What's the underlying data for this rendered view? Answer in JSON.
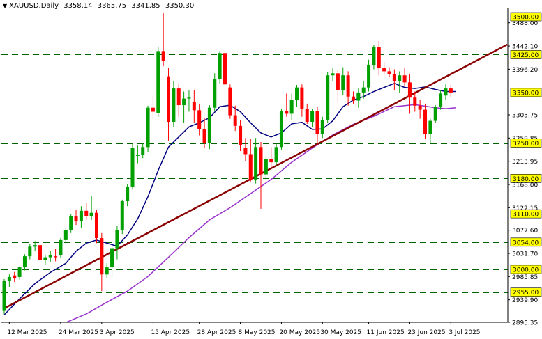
{
  "header": {
    "symbol": "XAUUSD,Daily",
    "open": "3358.14",
    "high": "3365.75",
    "low": "3341.85",
    "close": "3350.30"
  },
  "chart_data": {
    "type": "candlestick",
    "title": "XAUUSD,Daily",
    "ylim": [
      2895.35,
      3514.0
    ],
    "y_tick_labels": [
      "3488.00",
      "3442.10",
      "3396.20",
      "3305.75",
      "3259.85",
      "3213.95",
      "3168.00",
      "3122.15",
      "3077.60",
      "3031.70",
      "2985.85",
      "2939.90",
      "2895.35"
    ],
    "horizontal_levels": [
      {
        "value": 3500.0,
        "label": "3500.00"
      },
      {
        "value": 3425.0,
        "label": "3425.00"
      },
      {
        "value": 3350.0,
        "label": "3350.00"
      },
      {
        "value": 3250.0,
        "label": "3250.00"
      },
      {
        "value": 3180.0,
        "label": "3180.00"
      },
      {
        "value": 3110.0,
        "label": "3110.00"
      },
      {
        "value": 3054.0,
        "label": "3054.00"
      },
      {
        "value": 3000.0,
        "label": "3000.00"
      },
      {
        "value": 2955.0,
        "label": "2955.00"
      }
    ],
    "x_labels": [
      {
        "label": "12 Mar 2025",
        "bar": 1
      },
      {
        "label": "24 Mar 2025",
        "bar": 11
      },
      {
        "label": "3 Apr 2025",
        "bar": 19
      },
      {
        "label": "15 Apr 2025",
        "bar": 29
      },
      {
        "label": "28 Apr 2025",
        "bar": 38
      },
      {
        "label": "8 May 2025",
        "bar": 46
      },
      {
        "label": "20 May 2025",
        "bar": 54
      },
      {
        "label": "30 May 2025",
        "bar": 62
      },
      {
        "label": "11 Jun 2025",
        "bar": 71
      },
      {
        "label": "23 Jun 2025",
        "bar": 79
      },
      {
        "label": "3 Jul 2025",
        "bar": 87
      }
    ],
    "candles": [
      [
        2918,
        2981,
        2912,
        2978
      ],
      [
        2978,
        2990,
        2965,
        2985
      ],
      [
        2988,
        2995,
        2975,
        2982
      ],
      [
        2985,
        3006,
        2980,
        3004
      ],
      [
        3004,
        3030,
        2998,
        3026
      ],
      [
        3026,
        3050,
        3020,
        3045
      ],
      [
        3045,
        3056,
        3036,
        3048
      ],
      [
        3048,
        3052,
        3012,
        3018
      ],
      [
        3018,
        3028,
        3008,
        3024
      ],
      [
        3024,
        3036,
        3015,
        3029
      ],
      [
        3026,
        3040,
        3016,
        3024
      ],
      [
        3028,
        3062,
        3022,
        3058
      ],
      [
        3058,
        3082,
        3052,
        3078
      ],
      [
        3078,
        3110,
        3072,
        3105
      ],
      [
        3105,
        3118,
        3088,
        3095
      ],
      [
        3095,
        3125,
        3082,
        3116
      ],
      [
        3116,
        3132,
        3098,
        3106
      ],
      [
        3106,
        3145,
        3098,
        3112
      ],
      [
        3112,
        3118,
        3052,
        3062
      ],
      [
        3062,
        3072,
        2957,
        2990
      ],
      [
        2990,
        3012,
        2982,
        3004
      ],
      [
        3004,
        3046,
        2982,
        3042
      ],
      [
        3042,
        3086,
        3020,
        3078
      ],
      [
        3078,
        3138,
        3070,
        3135
      ],
      [
        3135,
        3168,
        3125,
        3164
      ],
      [
        3164,
        3248,
        3158,
        3240
      ],
      [
        3226,
        3245,
        3210,
        3226
      ],
      [
        3226,
        3250,
        3220,
        3242
      ],
      [
        3242,
        3324,
        3232,
        3320
      ],
      [
        3320,
        3345,
        3298,
        3312
      ],
      [
        3310,
        3440,
        3302,
        3432
      ],
      [
        3432,
        3508,
        3402,
        3412
      ],
      [
        3382,
        3398,
        3255,
        3292
      ],
      [
        3292,
        3372,
        3282,
        3358
      ],
      [
        3358,
        3368,
        3302,
        3325
      ],
      [
        3325,
        3352,
        3290,
        3338
      ],
      [
        3338,
        3355,
        3312,
        3340
      ],
      [
        3332,
        3354,
        3290,
        3315
      ],
      [
        3315,
        3328,
        3265,
        3278
      ],
      [
        3278,
        3300,
        3240,
        3250
      ],
      [
        3250,
        3325,
        3238,
        3320
      ],
      [
        3320,
        3388,
        3314,
        3376
      ],
      [
        3376,
        3432,
        3368,
        3428
      ],
      [
        3428,
        3434,
        3352,
        3366
      ],
      [
        3360,
        3366,
        3298,
        3305
      ],
      [
        3305,
        3324,
        3274,
        3284
      ],
      [
        3284,
        3296,
        3234,
        3246
      ],
      [
        3240,
        3260,
        3214,
        3228
      ],
      [
        3228,
        3258,
        3174,
        3178
      ],
      [
        3178,
        3260,
        3170,
        3242
      ],
      [
        3242,
        3252,
        3120,
        3188
      ],
      [
        3188,
        3224,
        3178,
        3218
      ],
      [
        3218,
        3242,
        3200,
        3212
      ],
      [
        3212,
        3248,
        3206,
        3242
      ],
      [
        3242,
        3318,
        3236,
        3314
      ],
      [
        3314,
        3348,
        3302,
        3308
      ],
      [
        3308,
        3348,
        3296,
        3336
      ],
      [
        3336,
        3365,
        3322,
        3360
      ],
      [
        3360,
        3366,
        3302,
        3318
      ],
      [
        3318,
        3328,
        3288,
        3292
      ],
      [
        3292,
        3318,
        3282,
        3314
      ],
      [
        3314,
        3322,
        3245,
        3268
      ],
      [
        3268,
        3302,
        3260,
        3296
      ],
      [
        3296,
        3390,
        3290,
        3384
      ],
      [
        3384,
        3398,
        3372,
        3388
      ],
      [
        3388,
        3395,
        3330,
        3354
      ],
      [
        3354,
        3400,
        3345,
        3384
      ],
      [
        3384,
        3392,
        3324,
        3342
      ],
      [
        3342,
        3352,
        3328,
        3334
      ],
      [
        3334,
        3358,
        3320,
        3350
      ],
      [
        3350,
        3372,
        3338,
        3360
      ],
      [
        3360,
        3415,
        3352,
        3404
      ],
      [
        3404,
        3445,
        3396,
        3440
      ],
      [
        3440,
        3452,
        3384,
        3398
      ],
      [
        3398,
        3410,
        3385,
        3392
      ],
      [
        3392,
        3400,
        3380,
        3386
      ],
      [
        3386,
        3396,
        3354,
        3372
      ],
      [
        3372,
        3392,
        3350,
        3384
      ],
      [
        3384,
        3398,
        3362,
        3370
      ],
      [
        3370,
        3386,
        3308,
        3340
      ],
      [
        3340,
        3352,
        3312,
        3324
      ],
      [
        3324,
        3336,
        3298,
        3316
      ],
      [
        3316,
        3328,
        3258,
        3268
      ],
      [
        3268,
        3298,
        3250,
        3294
      ],
      [
        3294,
        3325,
        3290,
        3322
      ],
      [
        3322,
        3354,
        3316,
        3348
      ],
      [
        3344,
        3366,
        3335,
        3358
      ],
      [
        3358,
        3365,
        3341,
        3350
      ]
    ],
    "moving_averages": [
      {
        "color": "#000080",
        "points": [
          [
            0,
            2910
          ],
          [
            3,
            2942
          ],
          [
            6,
            2972
          ],
          [
            9,
            2994
          ],
          [
            12,
            3012
          ],
          [
            14,
            3036
          ],
          [
            16,
            3052
          ],
          [
            18,
            3058
          ],
          [
            20,
            3052
          ],
          [
            22,
            3046
          ],
          [
            24,
            3068
          ],
          [
            26,
            3100
          ],
          [
            28,
            3144
          ],
          [
            30,
            3196
          ],
          [
            32,
            3242
          ],
          [
            34,
            3262
          ],
          [
            36,
            3282
          ],
          [
            38,
            3290
          ],
          [
            40,
            3300
          ],
          [
            42,
            3322
          ],
          [
            44,
            3325
          ],
          [
            46,
            3312
          ],
          [
            48,
            3290
          ],
          [
            50,
            3270
          ],
          [
            52,
            3262
          ],
          [
            54,
            3270
          ],
          [
            56,
            3288
          ],
          [
            58,
            3291
          ],
          [
            60,
            3277
          ],
          [
            62,
            3278
          ],
          [
            64,
            3294
          ],
          [
            66,
            3322
          ],
          [
            68,
            3335
          ],
          [
            70,
            3342
          ],
          [
            72,
            3352
          ],
          [
            74,
            3360
          ],
          [
            76,
            3368
          ],
          [
            78,
            3360
          ],
          [
            80,
            3358
          ],
          [
            82,
            3361
          ],
          [
            84,
            3356
          ],
          [
            86,
            3352
          ],
          [
            88,
            3352
          ]
        ]
      },
      {
        "color": "#9932CC",
        "points": [
          [
            12,
            2895
          ],
          [
            16,
            2912
          ],
          [
            20,
            2935
          ],
          [
            24,
            2957
          ],
          [
            28,
            2986
          ],
          [
            32,
            3024
          ],
          [
            36,
            3063
          ],
          [
            40,
            3098
          ],
          [
            44,
            3122
          ],
          [
            48,
            3150
          ],
          [
            52,
            3178
          ],
          [
            56,
            3212
          ],
          [
            60,
            3240
          ],
          [
            64,
            3266
          ],
          [
            68,
            3287
          ],
          [
            72,
            3303
          ],
          [
            76,
            3322
          ],
          [
            80,
            3326
          ],
          [
            84,
            3320
          ],
          [
            86,
            3318
          ],
          [
            88,
            3320
          ]
        ]
      }
    ],
    "trendline": {
      "color": "#8B0000",
      "from": {
        "bar": 0,
        "value": 2923
      },
      "to": {
        "bar": 98,
        "value": 3445
      }
    },
    "colors": {
      "bull": "#00A000",
      "bear": "#FF0000",
      "level": "#006400",
      "label_bg": "#FFFF00",
      "axis_text": "#000000"
    }
  }
}
